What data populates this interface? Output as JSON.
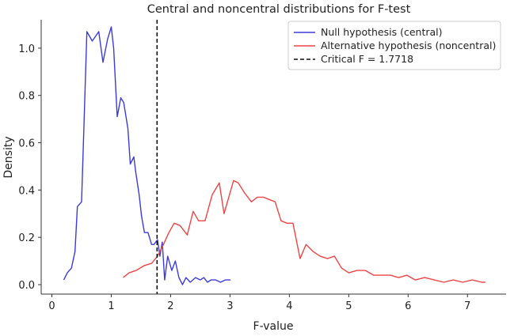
{
  "chart_data": {
    "type": "line",
    "title": "Central and noncentral distributions for F-test",
    "xlabel": "F-value",
    "ylabel": "Density",
    "xlim": [
      -0.18,
      7.65
    ],
    "ylim": [
      -0.04,
      1.12
    ],
    "xticks": [
      0,
      1,
      2,
      3,
      4,
      5,
      6,
      7
    ],
    "yticks": [
      0.0,
      0.2,
      0.4,
      0.6,
      0.8,
      1.0
    ],
    "xtick_labels": [
      "0",
      "1",
      "2",
      "3",
      "4",
      "5",
      "6",
      "7"
    ],
    "ytick_labels": [
      "0.0",
      "0.2",
      "0.4",
      "0.6",
      "0.8",
      "1.0"
    ],
    "grid": false,
    "legend_position": "top-right",
    "series": [
      {
        "name": "Null hypothesis (central)",
        "color": "#3b3bdc",
        "dash": "solid",
        "points": [
          [
            0.2,
            0.02
          ],
          [
            0.26,
            0.05
          ],
          [
            0.33,
            0.07
          ],
          [
            0.39,
            0.14
          ],
          [
            0.43,
            0.33
          ],
          [
            0.5,
            0.35
          ],
          [
            0.59,
            1.07
          ],
          [
            0.68,
            1.03
          ],
          [
            0.79,
            1.07
          ],
          [
            0.86,
            0.94
          ],
          [
            0.94,
            1.04
          ],
          [
            1.0,
            1.09
          ],
          [
            1.04,
            1.0
          ],
          [
            1.1,
            0.71
          ],
          [
            1.16,
            0.79
          ],
          [
            1.21,
            0.77
          ],
          [
            1.28,
            0.66
          ],
          [
            1.32,
            0.51
          ],
          [
            1.38,
            0.54
          ],
          [
            1.41,
            0.48
          ],
          [
            1.47,
            0.38
          ],
          [
            1.51,
            0.29
          ],
          [
            1.56,
            0.22
          ],
          [
            1.62,
            0.22
          ],
          [
            1.68,
            0.17
          ],
          [
            1.72,
            0.17
          ],
          [
            1.78,
            0.19
          ],
          [
            1.82,
            0.12
          ],
          [
            1.86,
            0.18
          ],
          [
            1.9,
            0.02
          ],
          [
            1.95,
            0.12
          ],
          [
            2.02,
            0.06
          ],
          [
            2.08,
            0.1
          ],
          [
            2.14,
            0.03
          ],
          [
            2.2,
            0.0
          ],
          [
            2.26,
            0.03
          ],
          [
            2.33,
            0.01
          ],
          [
            2.42,
            0.03
          ],
          [
            2.5,
            0.02
          ],
          [
            2.56,
            0.03
          ],
          [
            2.62,
            0.01
          ],
          [
            2.68,
            0.02
          ],
          [
            2.76,
            0.02
          ],
          [
            2.84,
            0.01
          ],
          [
            2.92,
            0.02
          ],
          [
            3.01,
            0.02
          ]
        ]
      },
      {
        "name": "Alternative hypothesis (noncentral)",
        "color": "#ee4545",
        "dash": "solid",
        "points": [
          [
            1.2,
            0.03
          ],
          [
            1.3,
            0.05
          ],
          [
            1.42,
            0.06
          ],
          [
            1.55,
            0.08
          ],
          [
            1.68,
            0.09
          ],
          [
            1.78,
            0.12
          ],
          [
            1.88,
            0.17
          ],
          [
            1.97,
            0.22
          ],
          [
            2.06,
            0.26
          ],
          [
            2.16,
            0.25
          ],
          [
            2.28,
            0.21
          ],
          [
            2.38,
            0.31
          ],
          [
            2.47,
            0.27
          ],
          [
            2.58,
            0.27
          ],
          [
            2.7,
            0.38
          ],
          [
            2.82,
            0.43
          ],
          [
            2.9,
            0.3
          ],
          [
            3.06,
            0.44
          ],
          [
            3.14,
            0.43
          ],
          [
            3.24,
            0.39
          ],
          [
            3.36,
            0.35
          ],
          [
            3.46,
            0.37
          ],
          [
            3.56,
            0.37
          ],
          [
            3.66,
            0.36
          ],
          [
            3.76,
            0.35
          ],
          [
            3.86,
            0.27
          ],
          [
            3.96,
            0.26
          ],
          [
            4.06,
            0.26
          ],
          [
            4.18,
            0.11
          ],
          [
            4.28,
            0.17
          ],
          [
            4.4,
            0.14
          ],
          [
            4.52,
            0.12
          ],
          [
            4.64,
            0.11
          ],
          [
            4.76,
            0.12
          ],
          [
            4.88,
            0.07
          ],
          [
            5.0,
            0.05
          ],
          [
            5.14,
            0.06
          ],
          [
            5.28,
            0.06
          ],
          [
            5.42,
            0.04
          ],
          [
            5.56,
            0.04
          ],
          [
            5.7,
            0.04
          ],
          [
            5.84,
            0.03
          ],
          [
            5.98,
            0.04
          ],
          [
            6.12,
            0.02
          ],
          [
            6.28,
            0.03
          ],
          [
            6.44,
            0.02
          ],
          [
            6.6,
            0.01
          ],
          [
            6.76,
            0.02
          ],
          [
            6.92,
            0.01
          ],
          [
            7.08,
            0.02
          ],
          [
            7.24,
            0.01
          ],
          [
            7.3,
            0.01
          ]
        ]
      }
    ],
    "reference_lines": [
      {
        "name": "Critical F = 1.7718",
        "orientation": "vertical",
        "x": 1.7718,
        "color": "#111111",
        "dash": "dashed"
      }
    ]
  }
}
